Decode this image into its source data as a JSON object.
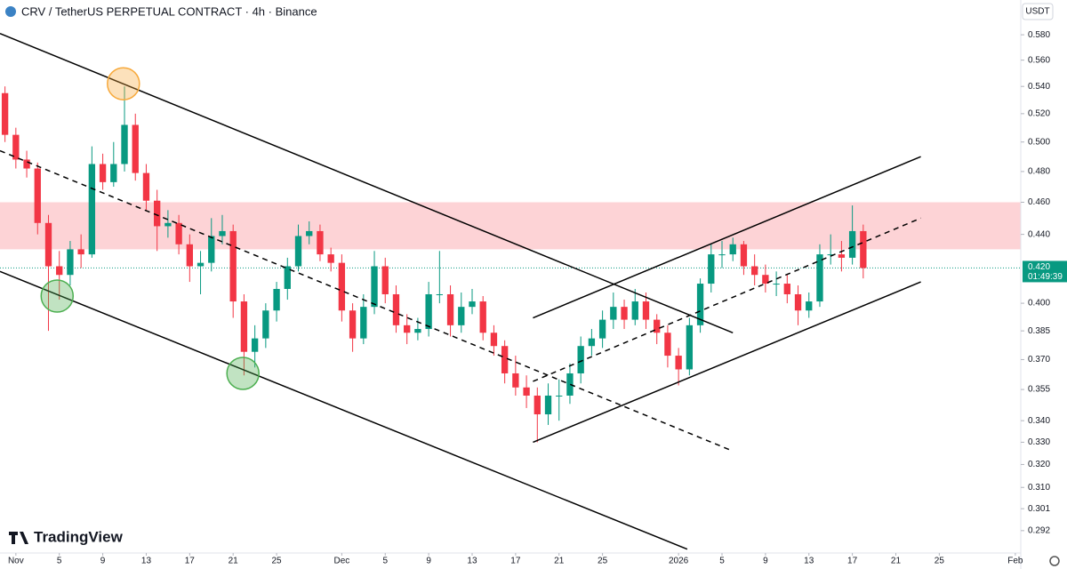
{
  "chart_data": {
    "type": "candlestick",
    "title": "CRV / TetherUS PERPETUAL CONTRACT · 4h · Binance",
    "currency": "USDT",
    "brand": "TradingView",
    "log_scale": true,
    "up_color": "#089981",
    "down_color": "#f23645",
    "xlim": [
      -1.46,
      92.5
    ],
    "ylim": [
      0.2838,
      0.6086
    ],
    "xticks": [
      {
        "value": 0,
        "label": "Nov"
      },
      {
        "value": 4,
        "label": "5"
      },
      {
        "value": 8,
        "label": "9"
      },
      {
        "value": 12,
        "label": "13"
      },
      {
        "value": 16,
        "label": "17"
      },
      {
        "value": 20,
        "label": "21"
      },
      {
        "value": 24,
        "label": "25"
      },
      {
        "value": 30,
        "label": "Dec"
      },
      {
        "value": 34,
        "label": "5"
      },
      {
        "value": 38,
        "label": "9"
      },
      {
        "value": 42,
        "label": "13"
      },
      {
        "value": 46,
        "label": "17"
      },
      {
        "value": 50,
        "label": "21"
      },
      {
        "value": 54,
        "label": "25"
      },
      {
        "value": 61,
        "label": "2026"
      },
      {
        "value": 65,
        "label": "5"
      },
      {
        "value": 69,
        "label": "9"
      },
      {
        "value": 73,
        "label": "13"
      },
      {
        "value": 77,
        "label": "17"
      },
      {
        "value": 81,
        "label": "21"
      },
      {
        "value": 85,
        "label": "25"
      },
      {
        "value": 92,
        "label": "Feb"
      }
    ],
    "yticks": [
      {
        "value": 0.58,
        "label": "0.580"
      },
      {
        "value": 0.56,
        "label": "0.560"
      },
      {
        "value": 0.54,
        "label": "0.540"
      },
      {
        "value": 0.52,
        "label": "0.520"
      },
      {
        "value": 0.5,
        "label": "0.500"
      },
      {
        "value": 0.48,
        "label": "0.480"
      },
      {
        "value": 0.46,
        "label": "0.460"
      },
      {
        "value": 0.44,
        "label": "0.440"
      },
      {
        "value": 0.4,
        "label": "0.400"
      },
      0.385,
      {
        "value": 0.37,
        "label": "0.370"
      },
      0.355,
      {
        "value": 0.34,
        "label": "0.340"
      },
      {
        "value": 0.33,
        "label": "0.330"
      },
      {
        "value": 0.32,
        "label": "0.320"
      },
      {
        "value": 0.31,
        "label": "0.310"
      },
      0.301,
      0.292
    ],
    "last_price": {
      "value": 0.42,
      "label": "0.420",
      "countdown": "01:49:39"
    },
    "x": [
      -1,
      0,
      1,
      2,
      3,
      4,
      5,
      6,
      7,
      8,
      9,
      10,
      11,
      12,
      13,
      14,
      15,
      16,
      17,
      18,
      19,
      20,
      21,
      22,
      23,
      24,
      25,
      26,
      27,
      28,
      29,
      30,
      31,
      32,
      33,
      34,
      35,
      36,
      37,
      38,
      39,
      40,
      41,
      42,
      43,
      44,
      45,
      46,
      47,
      48,
      49,
      50,
      51,
      52,
      53,
      54,
      55,
      56,
      57,
      58,
      59,
      60,
      61,
      62,
      63,
      64,
      65,
      66,
      67,
      68,
      69,
      70,
      71,
      72,
      73,
      74,
      75,
      76,
      77,
      78
    ],
    "open": [
      0.535,
      0.505,
      0.488,
      0.482,
      0.447,
      0.421,
      0.416,
      0.431,
      0.428,
      0.485,
      0.473,
      0.485,
      0.512,
      0.479,
      0.461,
      0.445,
      0.447,
      0.434,
      0.421,
      0.423,
      0.439,
      0.442,
      0.401,
      0.374,
      0.381,
      0.396,
      0.408,
      0.421,
      0.439,
      0.442,
      0.428,
      0.423,
      0.396,
      0.381,
      0.398,
      0.421,
      0.405,
      0.388,
      0.384,
      0.386,
      0.405,
      0.405,
      0.388,
      0.398,
      0.401,
      0.384,
      0.377,
      0.363,
      0.356,
      0.352,
      0.343,
      0.352,
      0.352,
      0.363,
      0.377,
      0.381,
      0.391,
      0.398,
      0.391,
      0.401,
      0.391,
      0.384,
      0.372,
      0.365,
      0.388,
      0.411,
      0.428,
      0.428,
      0.434,
      0.421,
      0.416,
      0.411,
      0.411,
      0.405,
      0.396,
      0.401,
      0.428,
      0.428,
      0.426,
      0.442
    ],
    "high": [
      0.54,
      0.51,
      0.494,
      0.486,
      0.452,
      0.43,
      0.436,
      0.44,
      0.497,
      0.492,
      0.5,
      0.54,
      0.52,
      0.485,
      0.468,
      0.455,
      0.452,
      0.44,
      0.43,
      0.45,
      0.452,
      0.446,
      0.405,
      0.388,
      0.4,
      0.412,
      0.426,
      0.446,
      0.448,
      0.446,
      0.432,
      0.428,
      0.4,
      0.405,
      0.43,
      0.426,
      0.41,
      0.394,
      0.392,
      0.412,
      0.43,
      0.41,
      0.406,
      0.408,
      0.404,
      0.388,
      0.38,
      0.372,
      0.362,
      0.356,
      0.358,
      0.36,
      0.368,
      0.382,
      0.386,
      0.396,
      0.406,
      0.402,
      0.408,
      0.406,
      0.394,
      0.388,
      0.376,
      0.392,
      0.414,
      0.434,
      0.436,
      0.438,
      0.436,
      0.428,
      0.422,
      0.418,
      0.416,
      0.41,
      0.406,
      0.434,
      0.44,
      0.436,
      0.458,
      0.446
    ],
    "low": [
      0.5,
      0.482,
      0.476,
      0.44,
      0.385,
      0.402,
      0.41,
      0.42,
      0.426,
      0.468,
      0.47,
      0.48,
      0.474,
      0.455,
      0.43,
      0.438,
      0.428,
      0.412,
      0.405,
      0.418,
      0.434,
      0.392,
      0.362,
      0.366,
      0.376,
      0.39,
      0.402,
      0.418,
      0.434,
      0.424,
      0.418,
      0.39,
      0.374,
      0.378,
      0.394,
      0.4,
      0.384,
      0.378,
      0.38,
      0.382,
      0.4,
      0.382,
      0.384,
      0.394,
      0.38,
      0.372,
      0.358,
      0.352,
      0.346,
      0.33,
      0.338,
      0.34,
      0.348,
      0.358,
      0.372,
      0.376,
      0.386,
      0.386,
      0.388,
      0.386,
      0.378,
      0.366,
      0.357,
      0.362,
      0.384,
      0.406,
      0.42,
      0.424,
      0.416,
      0.41,
      0.406,
      0.404,
      0.4,
      0.388,
      0.392,
      0.398,
      0.422,
      0.418,
      0.422,
      0.414
    ],
    "close": [
      0.505,
      0.488,
      0.482,
      0.447,
      0.421,
      0.416,
      0.431,
      0.428,
      0.485,
      0.473,
      0.485,
      0.512,
      0.479,
      0.461,
      0.445,
      0.447,
      0.434,
      0.421,
      0.423,
      0.439,
      0.442,
      0.401,
      0.374,
      0.381,
      0.396,
      0.408,
      0.421,
      0.439,
      0.442,
      0.428,
      0.423,
      0.396,
      0.381,
      0.398,
      0.421,
      0.405,
      0.388,
      0.384,
      0.386,
      0.405,
      0.405,
      0.388,
      0.398,
      0.401,
      0.384,
      0.377,
      0.363,
      0.356,
      0.352,
      0.343,
      0.352,
      0.352,
      0.363,
      0.377,
      0.381,
      0.391,
      0.398,
      0.391,
      0.401,
      0.391,
      0.384,
      0.372,
      0.365,
      0.388,
      0.411,
      0.428,
      0.428,
      0.434,
      0.421,
      0.416,
      0.411,
      0.411,
      0.405,
      0.396,
      0.401,
      0.428,
      0.428,
      0.426,
      0.442,
      0.42
    ],
    "zone": {
      "low": 0.431,
      "high": 0.46,
      "color": "#fdd3d6"
    },
    "lines": [
      {
        "x": [
          -1.46,
          66.0
        ],
        "y": [
          0.581,
          0.384
        ],
        "style": "solid"
      },
      {
        "x": [
          -1.46,
          61.8
        ],
        "y": [
          0.418,
          0.2846
        ],
        "style": "solid"
      },
      {
        "x": [
          -1.46,
          66.0
        ],
        "y": [
          0.494,
          0.326
        ],
        "style": "dashed"
      },
      {
        "x": [
          47.6,
          83.3
        ],
        "y": [
          0.392,
          0.49
        ],
        "style": "solid"
      },
      {
        "x": [
          47.6,
          83.3
        ],
        "y": [
          0.33,
          0.412
        ],
        "style": "solid"
      },
      {
        "x": [
          47.6,
          83.3
        ],
        "y": [
          0.359,
          0.45
        ],
        "style": "dashed"
      }
    ],
    "highlights": [
      {
        "x": 9.9,
        "y": 0.542,
        "color": "#f7a93b"
      },
      {
        "x": 3.8,
        "y": 0.404,
        "color": "#4caf50"
      },
      {
        "x": 20.9,
        "y": 0.363,
        "color": "#4caf50"
      }
    ]
  }
}
